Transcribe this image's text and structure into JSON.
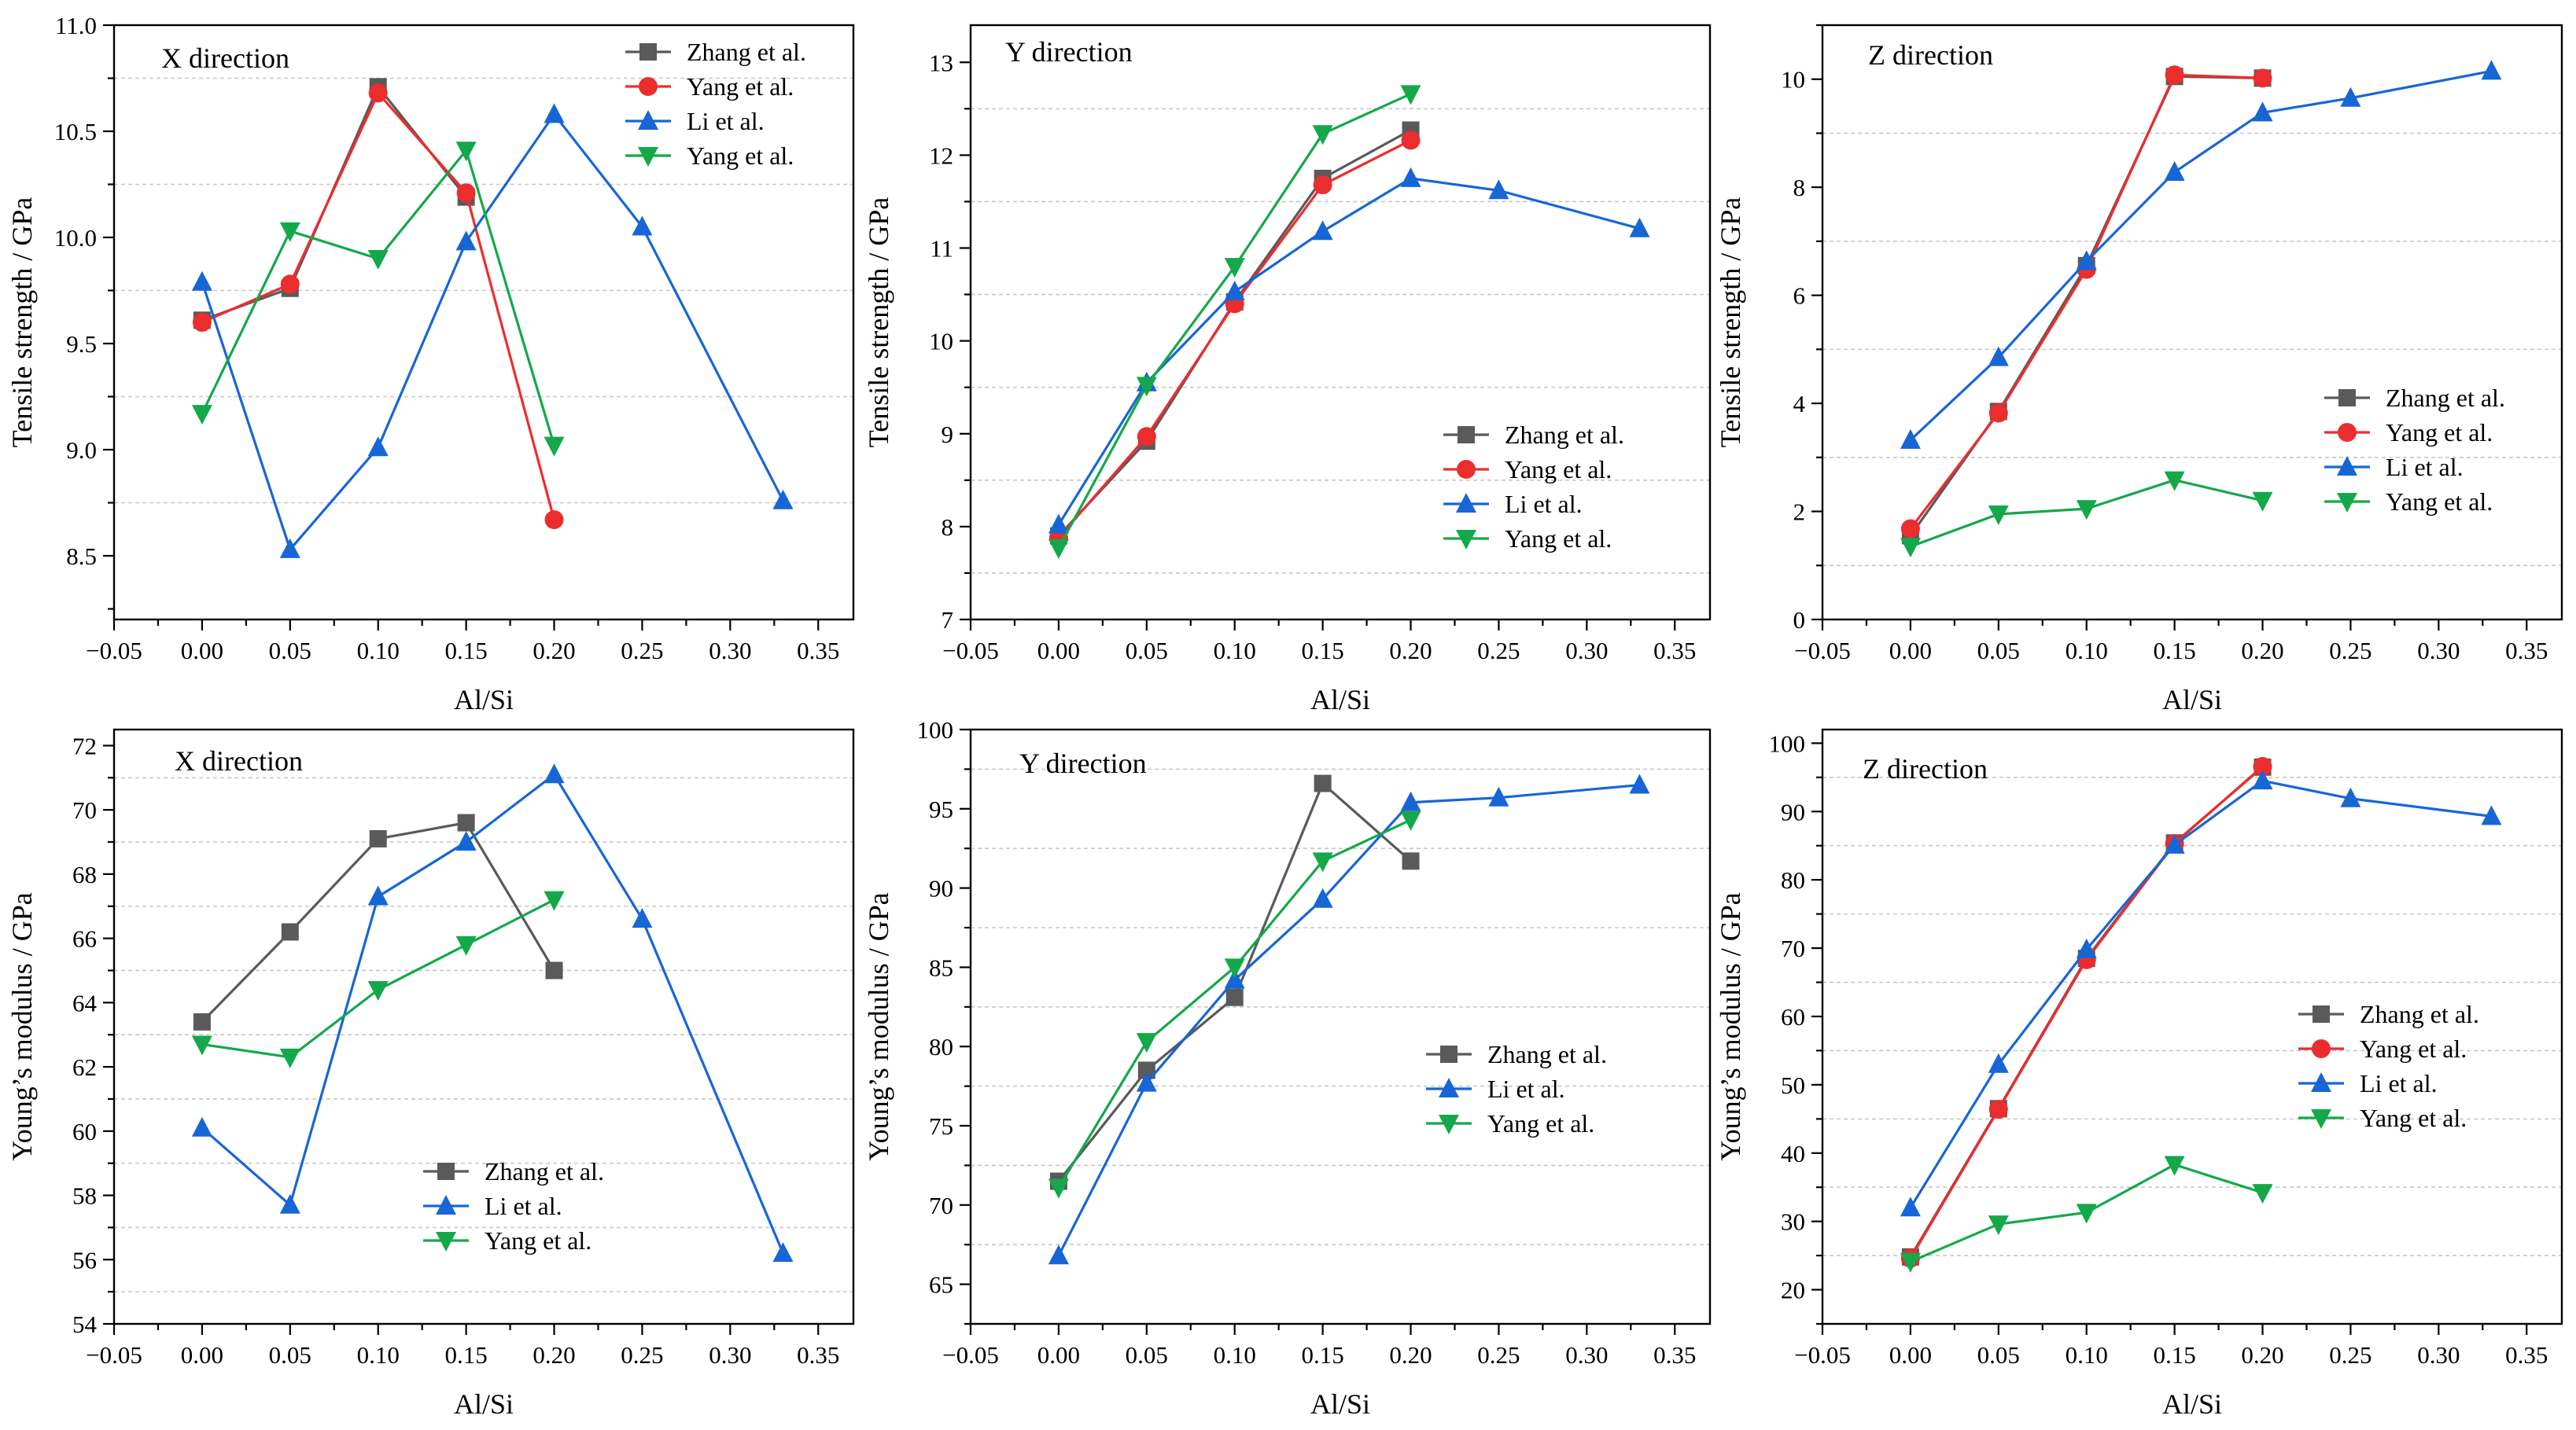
{
  "colors": {
    "zhang": "#5a5a5a",
    "yang_red": "#ec2d2d",
    "li": "#1766d6",
    "yang_green": "#14a84a"
  },
  "chart_data": [
    {
      "type": "line",
      "id": "ts-x",
      "direction_label": "X direction",
      "xlabel": "Al/Si",
      "ylabel": "Tensile strength / GPa",
      "xlim": [
        -0.05,
        0.37
      ],
      "ylim": [
        8.2,
        11.0
      ],
      "xticks": [
        -0.05,
        0.0,
        0.05,
        0.1,
        0.15,
        0.2,
        0.25,
        0.3,
        0.35
      ],
      "xtick_labels": [
        "−0.05",
        "0.00",
        "0.05",
        "0.10",
        "0.15",
        "0.20",
        "0.25",
        "0.30",
        "0.35"
      ],
      "yticks": [
        8.5,
        9.0,
        9.5,
        10.0,
        10.5,
        11.0
      ],
      "ytick_labels": [
        "8.5",
        "9.0",
        "9.5",
        "10.0",
        "10.5",
        "11.0"
      ],
      "grid_y": [
        8.75,
        9.25,
        9.75,
        10.25,
        10.75
      ],
      "legend_position": "top-right",
      "series": [
        {
          "name": "Zhang et al.",
          "color": "#5a5a5a",
          "marker": "square",
          "x": [
            0,
            0.05,
            0.1,
            0.15
          ],
          "y": [
            9.61,
            9.76,
            10.71,
            10.19
          ]
        },
        {
          "name": "Yang et al.",
          "color": "#ec2d2d",
          "marker": "circle",
          "x": [
            0,
            0.05,
            0.1,
            0.15,
            0.2
          ],
          "y": [
            9.6,
            9.78,
            10.68,
            10.21,
            8.67
          ]
        },
        {
          "name": "Li et al.",
          "color": "#1766d6",
          "marker": "triangle-up",
          "x": [
            0,
            0.05,
            0.1,
            0.15,
            0.2,
            0.25,
            0.33
          ],
          "y": [
            9.79,
            8.53,
            9.01,
            9.98,
            10.58,
            10.05,
            8.76
          ]
        },
        {
          "name": "Yang et al.",
          "color": "#14a84a",
          "marker": "triangle-down",
          "x": [
            0,
            0.05,
            0.1,
            0.15,
            0.2
          ],
          "y": [
            9.17,
            10.03,
            9.9,
            10.41,
            9.02
          ]
        }
      ]
    },
    {
      "type": "line",
      "id": "ts-y",
      "direction_label": "Y direction",
      "xlabel": "Al/Si",
      "ylabel": "Tensile strength / GPa",
      "xlim": [
        -0.05,
        0.37
      ],
      "ylim": [
        7.0,
        13.4
      ],
      "xticks": [
        -0.05,
        0.0,
        0.05,
        0.1,
        0.15,
        0.2,
        0.25,
        0.3,
        0.35
      ],
      "xtick_labels": [
        "−0.05",
        "0.00",
        "0.05",
        "0.10",
        "0.15",
        "0.20",
        "0.25",
        "0.30",
        "0.35"
      ],
      "yticks": [
        7,
        8,
        9,
        10,
        11,
        12,
        13
      ],
      "ytick_labels": [
        "7",
        "8",
        "9",
        "10",
        "11",
        "12",
        "13"
      ],
      "grid_y": [
        7.5,
        8.5,
        9.5,
        10.5,
        11.5,
        12.5
      ],
      "legend_position": "lower-right",
      "series": [
        {
          "name": "Zhang et al.",
          "color": "#5a5a5a",
          "marker": "square",
          "x": [
            0,
            0.05,
            0.1,
            0.15,
            0.2
          ],
          "y": [
            7.9,
            8.92,
            10.42,
            11.75,
            12.27
          ]
        },
        {
          "name": "Yang et al.",
          "color": "#ec2d2d",
          "marker": "circle",
          "x": [
            0,
            0.05,
            0.1,
            0.15,
            0.2
          ],
          "y": [
            7.88,
            8.97,
            10.4,
            11.68,
            12.16
          ]
        },
        {
          "name": "Li et al.",
          "color": "#1766d6",
          "marker": "triangle-up",
          "x": [
            0,
            0.05,
            0.1,
            0.15,
            0.2,
            0.25,
            0.33
          ],
          "y": [
            8.02,
            9.55,
            10.53,
            11.18,
            11.75,
            11.62,
            11.21
          ]
        },
        {
          "name": "Yang et al.",
          "color": "#14a84a",
          "marker": "triangle-down",
          "x": [
            0,
            0.05,
            0.1,
            0.15,
            0.2
          ],
          "y": [
            7.77,
            9.52,
            10.8,
            12.23,
            12.66
          ]
        }
      ]
    },
    {
      "type": "line",
      "id": "ts-z",
      "direction_label": "Z direction",
      "xlabel": "Al/Si",
      "ylabel": "Tensile strength / GPa",
      "xlim": [
        -0.05,
        0.37
      ],
      "ylim": [
        0,
        11.0
      ],
      "xticks": [
        -0.05,
        0.0,
        0.05,
        0.1,
        0.15,
        0.2,
        0.25,
        0.3,
        0.35
      ],
      "xtick_labels": [
        "−0.05",
        "0.00",
        "0.05",
        "0.10",
        "0.15",
        "0.20",
        "0.25",
        "0.30",
        "0.35"
      ],
      "yticks": [
        0,
        2,
        4,
        6,
        8,
        10
      ],
      "ytick_labels": [
        "0",
        "2",
        "4",
        "6",
        "8",
        "10"
      ],
      "grid_y": [
        1,
        3,
        5,
        7,
        9
      ],
      "legend_position": "right",
      "series": [
        {
          "name": "Zhang et al.",
          "color": "#5a5a5a",
          "marker": "square",
          "x": [
            0,
            0.05,
            0.1,
            0.15,
            0.2
          ],
          "y": [
            1.55,
            3.85,
            6.55,
            10.05,
            10.02
          ]
        },
        {
          "name": "Yang et al.",
          "color": "#ec2d2d",
          "marker": "circle",
          "x": [
            0,
            0.05,
            0.1,
            0.15,
            0.2
          ],
          "y": [
            1.68,
            3.82,
            6.48,
            10.08,
            10.02
          ]
        },
        {
          "name": "Li et al.",
          "color": "#1766d6",
          "marker": "triangle-up",
          "x": [
            0,
            0.05,
            0.1,
            0.15,
            0.2,
            0.25,
            0.33
          ],
          "y": [
            3.32,
            4.85,
            6.63,
            8.28,
            9.38,
            9.65,
            10.15
          ]
        },
        {
          "name": "Yang et al.",
          "color": "#14a84a",
          "marker": "triangle-down",
          "x": [
            0,
            0.05,
            0.1,
            0.15,
            0.2
          ],
          "y": [
            1.35,
            1.95,
            2.05,
            2.58,
            2.2
          ]
        }
      ]
    },
    {
      "type": "line",
      "id": "ym-x",
      "direction_label": "X direction",
      "xlabel": "Al/Si",
      "ylabel": "Young’s modulus / GPa",
      "xlim": [
        -0.05,
        0.37
      ],
      "ylim": [
        54,
        72.5
      ],
      "xticks": [
        -0.05,
        0.0,
        0.05,
        0.1,
        0.15,
        0.2,
        0.25,
        0.3,
        0.35
      ],
      "xtick_labels": [
        "−0.05",
        "0.00",
        "0.05",
        "0.10",
        "0.15",
        "0.20",
        "0.25",
        "0.30",
        "0.35"
      ],
      "yticks": [
        54,
        56,
        58,
        60,
        62,
        64,
        66,
        68,
        70,
        72
      ],
      "ytick_labels": [
        "54",
        "56",
        "58",
        "60",
        "62",
        "64",
        "66",
        "68",
        "70",
        "72"
      ],
      "grid_y": [
        55,
        57,
        59,
        61,
        63,
        65,
        67,
        69,
        71
      ],
      "legend_position": "lower-middle",
      "series": [
        {
          "name": "Zhang et al.",
          "color": "#5a5a5a",
          "marker": "square",
          "x": [
            0,
            0.05,
            0.1,
            0.15,
            0.2
          ],
          "y": [
            63.4,
            66.2,
            69.1,
            69.6,
            65.0
          ]
        },
        {
          "name": "Li et al.",
          "color": "#1766d6",
          "marker": "triangle-up",
          "x": [
            0,
            0.05,
            0.1,
            0.15,
            0.2,
            0.25,
            0.33
          ],
          "y": [
            60.1,
            57.7,
            67.3,
            69.0,
            71.1,
            66.6,
            56.2
          ]
        },
        {
          "name": "Yang et al.",
          "color": "#14a84a",
          "marker": "triangle-down",
          "x": [
            0,
            0.05,
            0.1,
            0.15,
            0.2
          ],
          "y": [
            62.7,
            62.3,
            64.4,
            65.8,
            67.2
          ]
        }
      ]
    },
    {
      "type": "line",
      "id": "ym-y",
      "direction_label": "Y direction",
      "xlabel": "Al/Si",
      "ylabel": "Young’s modulus / GPa",
      "xlim": [
        -0.05,
        0.37
      ],
      "ylim": [
        62.5,
        100
      ],
      "xticks": [
        -0.05,
        0.0,
        0.05,
        0.1,
        0.15,
        0.2,
        0.25,
        0.3,
        0.35
      ],
      "xtick_labels": [
        "−0.05",
        "0.00",
        "0.05",
        "0.10",
        "0.15",
        "0.20",
        "0.25",
        "0.30",
        "0.35"
      ],
      "yticks": [
        65,
        70,
        75,
        80,
        85,
        90,
        95,
        100
      ],
      "ytick_labels": [
        "65",
        "70",
        "75",
        "80",
        "85",
        "90",
        "95",
        "100"
      ],
      "grid_y": [
        67.5,
        72.5,
        77.5,
        82.5,
        87.5,
        92.5,
        97.5
      ],
      "legend_position": "lower-right",
      "series": [
        {
          "name": "Zhang et al.",
          "color": "#5a5a5a",
          "marker": "square",
          "x": [
            0,
            0.05,
            0.1,
            0.15,
            0.2
          ],
          "y": [
            71.5,
            78.5,
            83.1,
            96.6,
            91.7
          ]
        },
        {
          "name": "Li et al.",
          "color": "#1766d6",
          "marker": "triangle-up",
          "x": [
            0,
            0.05,
            0.1,
            0.15,
            0.2,
            0.25,
            0.33
          ],
          "y": [
            66.8,
            77.7,
            84.2,
            89.3,
            95.4,
            95.7,
            96.5
          ]
        },
        {
          "name": "Yang et al.",
          "color": "#14a84a",
          "marker": "triangle-down",
          "x": [
            0,
            0.05,
            0.1,
            0.15,
            0.2
          ],
          "y": [
            71.1,
            80.3,
            85.0,
            91.7,
            94.3
          ]
        }
      ]
    },
    {
      "type": "line",
      "id": "ym-z",
      "direction_label": "Z direction",
      "xlabel": "Al/Si",
      "ylabel": "Young’s modulus / GPa",
      "xlim": [
        -0.05,
        0.37
      ],
      "ylim": [
        15,
        102
      ],
      "xticks": [
        -0.05,
        0.0,
        0.05,
        0.1,
        0.15,
        0.2,
        0.25,
        0.3,
        0.35
      ],
      "xtick_labels": [
        "−0.05",
        "0.00",
        "0.05",
        "0.10",
        "0.15",
        "0.20",
        "0.25",
        "0.30",
        "0.35"
      ],
      "yticks": [
        20,
        30,
        40,
        50,
        60,
        70,
        80,
        90,
        100
      ],
      "ytick_labels": [
        "20",
        "30",
        "40",
        "50",
        "60",
        "70",
        "80",
        "90",
        "100"
      ],
      "grid_y": [
        25,
        35,
        45,
        55,
        65,
        75,
        85,
        95
      ],
      "legend_position": "lower-right",
      "series": [
        {
          "name": "Zhang et al.",
          "color": "#5a5a5a",
          "marker": "square",
          "x": [
            0,
            0.05,
            0.1,
            0.15,
            0.2
          ],
          "y": [
            24.8,
            46.5,
            68.5,
            85.4,
            96.5
          ]
        },
        {
          "name": "Yang et al.",
          "color": "#ec2d2d",
          "marker": "circle",
          "x": [
            0,
            0.05,
            0.1,
            0.15,
            0.2
          ],
          "y": [
            24.6,
            46.4,
            68.3,
            85.3,
            96.6
          ]
        },
        {
          "name": "Li et al.",
          "color": "#1766d6",
          "marker": "triangle-up",
          "x": [
            0,
            0.05,
            0.1,
            0.15,
            0.2,
            0.25,
            0.33
          ],
          "y": [
            32.0,
            53.0,
            69.8,
            85.1,
            94.5,
            91.9,
            89.3
          ]
        },
        {
          "name": "Yang et al.",
          "color": "#14a84a",
          "marker": "triangle-down",
          "x": [
            0,
            0.05,
            0.1,
            0.15,
            0.2
          ],
          "y": [
            24.1,
            29.6,
            31.3,
            38.3,
            34.2
          ]
        }
      ]
    }
  ]
}
